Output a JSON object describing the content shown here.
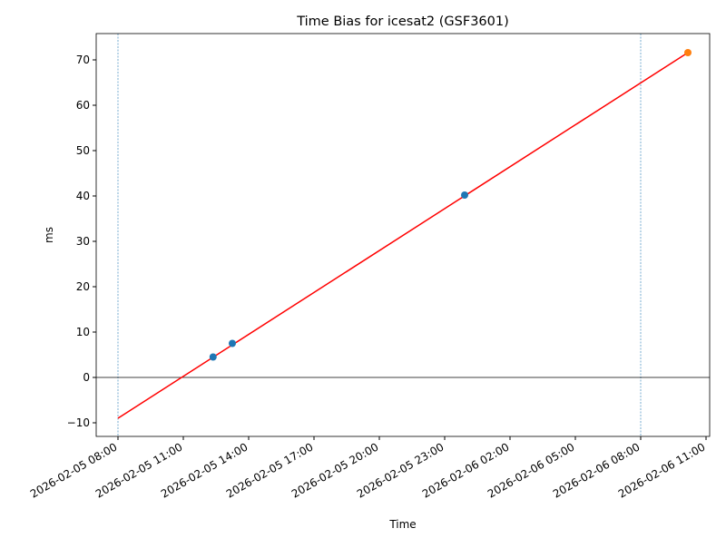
{
  "chart_data": {
    "type": "line",
    "title": "Time Bias for icesat2 (GSF3601)",
    "x_label": "Time",
    "y_label": "ms",
    "xlim": [
      "2026-02-05 07:00",
      "2026-02-06 11:10"
    ],
    "xticks": [
      "2026-02-05 08:00",
      "2026-02-05 11:00",
      "2026-02-05 14:00",
      "2026-02-05 17:00",
      "2026-02-05 20:00",
      "2026-02-05 23:00",
      "2026-02-06 02:00",
      "2026-02-06 05:00",
      "2026-02-06 08:00",
      "2026-02-06 11:00"
    ],
    "ylim": [
      -13,
      75.8
    ],
    "yticks": [
      {
        "value": -10,
        "label": "−10"
      },
      0,
      10,
      20,
      30,
      40,
      50,
      60,
      70
    ],
    "vlines": [
      "2026-02-05 08:00",
      "2026-02-06 08:00"
    ],
    "vline_color": "#1f77b4",
    "hline": 0,
    "hline_color": "#000000",
    "series": [
      {
        "type": "line",
        "color": "#ff0000",
        "x": [
          "2026-02-05 08:00",
          "2026-02-06 10:10"
        ],
        "values": [
          -9.0,
          71.6
        ]
      },
      {
        "type": "scatter",
        "color": "#1f77b4",
        "x": [
          "2026-02-05 12:22",
          "2026-02-05 13:15",
          "2026-02-05 23:55"
        ],
        "values": [
          4.5,
          7.5,
          40.2
        ]
      },
      {
        "type": "scatter",
        "color": "#ff7f0e",
        "x": [
          "2026-02-06 10:10"
        ],
        "values": [
          71.6
        ]
      }
    ]
  }
}
